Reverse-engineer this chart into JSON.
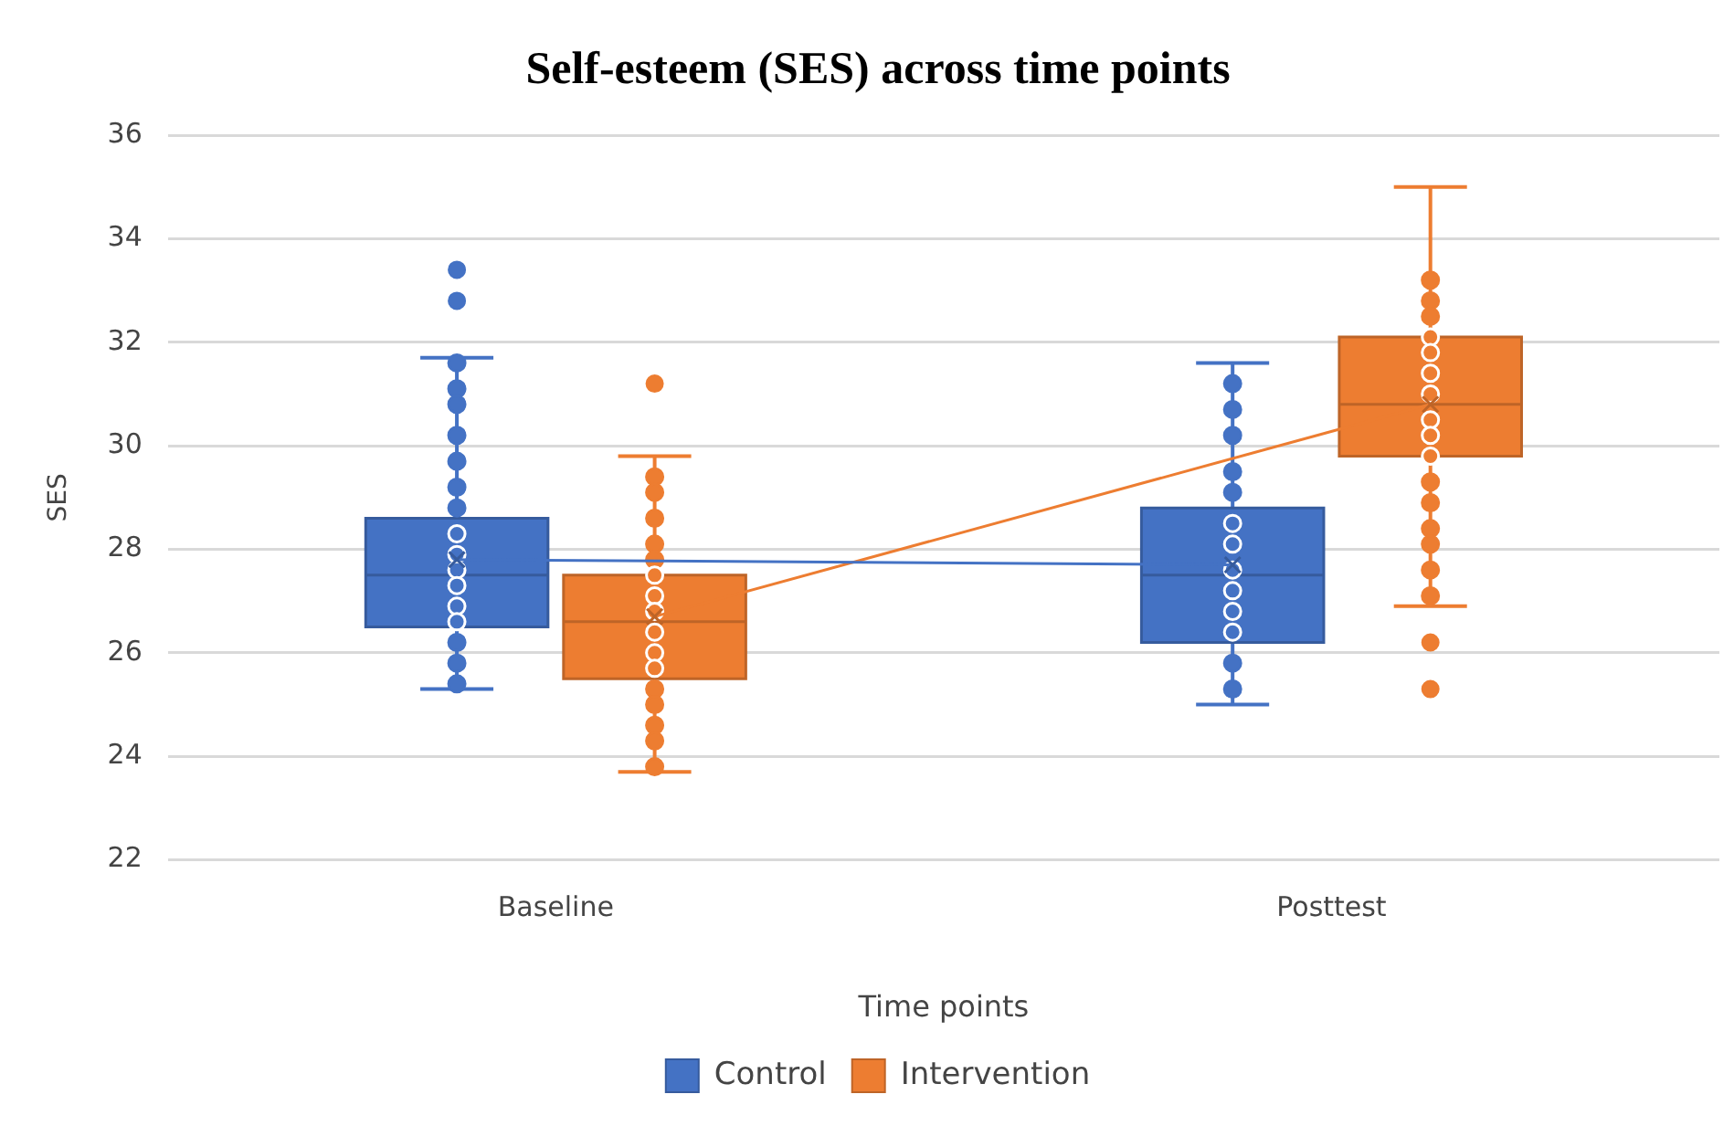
{
  "chart_data": {
    "type": "box",
    "title": "Self-esteem (SES) across time points",
    "xlabel": "Time points",
    "ylabel": "SES",
    "categories": [
      "Baseline",
      "Posttest"
    ],
    "ylim": [
      22,
      36
    ],
    "yticks": [
      22,
      24,
      26,
      28,
      30,
      32,
      34,
      36
    ],
    "grid": "y",
    "legend": "bottom",
    "series": [
      {
        "name": "Control",
        "color": "#4472c4",
        "boxes": [
          {
            "low": 25.3,
            "q1": 26.5,
            "median": 27.5,
            "q3": 28.6,
            "high": 31.7,
            "mean": 27.8,
            "outliers": [
              33.4,
              32.8
            ]
          },
          {
            "low": 25.0,
            "q1": 26.2,
            "median": 27.5,
            "q3": 28.8,
            "high": 31.6,
            "mean": 27.7
          }
        ]
      },
      {
        "name": "Intervention",
        "color": "#ed7d31",
        "boxes": [
          {
            "low": 23.7,
            "q1": 25.5,
            "median": 26.6,
            "q3": 27.5,
            "high": 29.8,
            "mean": 26.7,
            "outliers": [
              31.2
            ]
          },
          {
            "low": 26.9,
            "q1": 29.8,
            "median": 30.8,
            "q3": 32.1,
            "high": 35.0,
            "mean": 30.8,
            "outliers": [
              26.2,
              25.3
            ]
          }
        ]
      },
      {
        "type": "line",
        "color": "#4472c4",
        "x": [
          "Baseline",
          "Posttest"
        ],
        "values": [
          27.8,
          27.7
        ]
      },
      {
        "type": "line",
        "color": "#ed7d31",
        "x": [
          "Baseline",
          "Posttest"
        ],
        "values": [
          26.7,
          30.8
        ]
      },
      {
        "type": "scatter",
        "color": "#4472c4",
        "x": [
          "Baseline",
          "Baseline",
          "Baseline",
          "Baseline",
          "Baseline",
          "Baseline",
          "Baseline",
          "Baseline",
          "Baseline",
          "Baseline",
          "Baseline",
          "Baseline",
          "Baseline",
          "Baseline",
          "Baseline",
          "Baseline",
          "Posttest",
          "Posttest",
          "Posttest",
          "Posttest",
          "Posttest",
          "Posttest",
          "Posttest",
          "Posttest",
          "Posttest",
          "Posttest",
          "Posttest",
          "Posttest",
          "Posttest"
        ],
        "values": [
          31.6,
          31.1,
          30.8,
          30.2,
          29.7,
          29.2,
          28.8,
          28.3,
          27.9,
          27.6,
          27.3,
          26.9,
          26.6,
          26.2,
          25.8,
          25.4,
          31.2,
          30.7,
          30.2,
          29.5,
          29.1,
          28.5,
          28.1,
          27.6,
          27.2,
          26.8,
          26.4,
          25.8,
          25.3
        ]
      },
      {
        "type": "scatter",
        "color": "#ed7d31",
        "x": [
          "Baseline",
          "Baseline",
          "Baseline",
          "Baseline",
          "Baseline",
          "Baseline",
          "Baseline",
          "Baseline",
          "Baseline",
          "Baseline",
          "Baseline",
          "Baseline",
          "Baseline",
          "Baseline",
          "Baseline",
          "Baseline",
          "Posttest",
          "Posttest",
          "Posttest",
          "Posttest",
          "Posttest",
          "Posttest",
          "Posttest",
          "Posttest",
          "Posttest",
          "Posttest",
          "Posttest",
          "Posttest",
          "Posttest",
          "Posttest",
          "Posttest",
          "Posttest"
        ],
        "values": [
          29.4,
          29.1,
          28.6,
          28.1,
          27.8,
          27.5,
          27.1,
          26.8,
          26.4,
          26.0,
          25.7,
          25.3,
          25.0,
          24.6,
          24.3,
          23.8,
          33.2,
          32.8,
          32.5,
          32.1,
          31.8,
          31.4,
          31.0,
          30.5,
          30.2,
          29.8,
          29.3,
          28.9,
          28.4,
          28.1,
          27.6,
          27.1
        ]
      }
    ]
  }
}
